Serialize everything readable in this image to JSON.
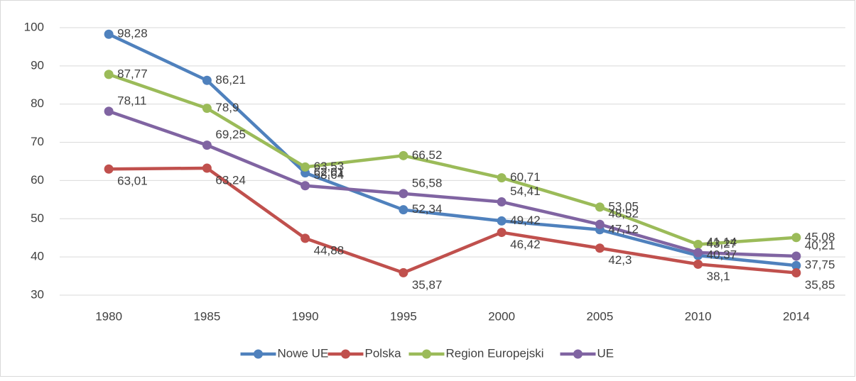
{
  "chart_data": {
    "type": "line",
    "categories": [
      "1980",
      "1985",
      "1990",
      "1995",
      "2000",
      "2005",
      "2010",
      "2014"
    ],
    "series": [
      {
        "name": "Nowe UE",
        "color": "#4f81bd",
        "values": [
          98.28,
          86.21,
          62.01,
          52.34,
          49.42,
          47.12,
          40.37,
          37.75
        ],
        "value_labels": [
          "98,28",
          "86,21",
          "62,01",
          "52,34",
          "49,42",
          "47,12",
          "40,37",
          "37,75"
        ]
      },
      {
        "name": "Polska",
        "color": "#c0504d",
        "values": [
          63.01,
          63.24,
          44.88,
          35.87,
          46.42,
          42.3,
          38.1,
          35.85
        ],
        "value_labels": [
          "63,01",
          "63,24",
          "44,88",
          "35,87",
          "46,42",
          "42,3",
          "38,1",
          "35,85"
        ]
      },
      {
        "name": "Region Europejski",
        "color": "#9bbb59",
        "values": [
          87.77,
          78.9,
          63.53,
          66.52,
          60.71,
          53.05,
          43.27,
          45.08
        ],
        "value_labels": [
          "87,77",
          "78,9",
          "63,53",
          "66,52",
          "60,71",
          "53,05",
          "43,27",
          "45,08"
        ]
      },
      {
        "name": "UE",
        "color": "#8064a2",
        "values": [
          78.11,
          69.25,
          58.64,
          56.58,
          54.41,
          48.52,
          41.14,
          40.21
        ],
        "value_labels": [
          "78,11",
          "69,25",
          "58,64",
          "56,58",
          "54,41",
          "48,52",
          "41,14",
          "40,21"
        ]
      }
    ],
    "ylim": [
      30,
      100
    ],
    "yticks": [
      30,
      40,
      50,
      60,
      70,
      80,
      90,
      100
    ],
    "grid": true,
    "legend": "bottom"
  }
}
